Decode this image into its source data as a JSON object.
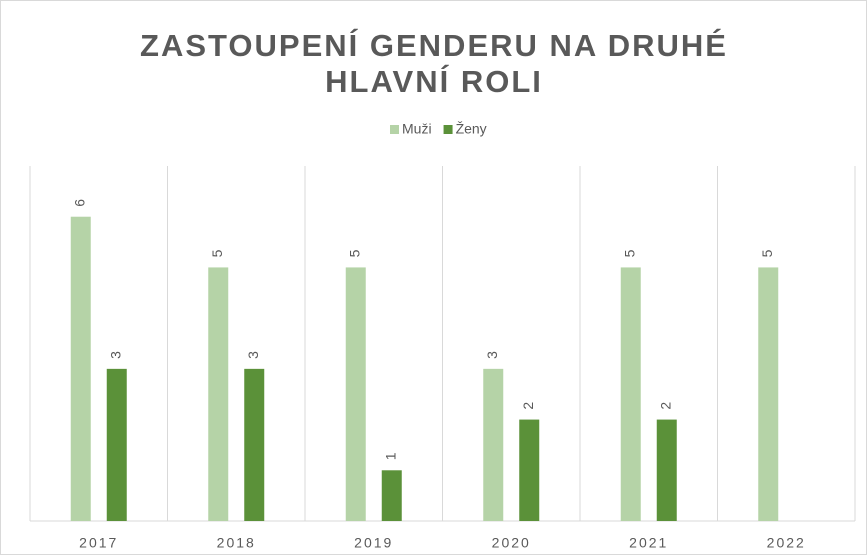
{
  "chart_data": {
    "type": "bar",
    "title": "ZASTOUPENÍ GENDERU NA DRUHÉ HLAVNÍ ROLI",
    "categories": [
      "2017",
      "2018",
      "2019",
      "2020",
      "2021",
      "2022"
    ],
    "series": [
      {
        "name": "Muži",
        "color": "#b5d3a7",
        "values": [
          6,
          5,
          5,
          3,
          5,
          5
        ]
      },
      {
        "name": "Ženy",
        "color": "#5b9139",
        "values": [
          3,
          3,
          1,
          2,
          2,
          null
        ]
      }
    ],
    "ylim": [
      0,
      7
    ],
    "legend": "top"
  }
}
